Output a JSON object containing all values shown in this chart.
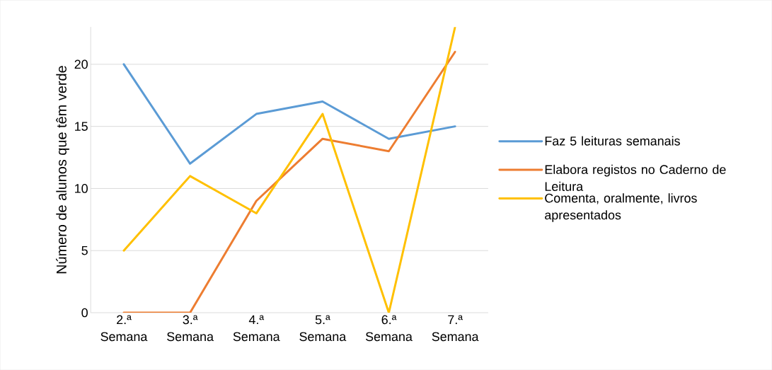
{
  "chart_data": {
    "type": "line",
    "ylabel": "Número de alunos que têm verde",
    "categories": [
      "2.ª Semana",
      "3.ª Semana",
      "4.ª Semana",
      "5.ª Semana",
      "6.ª Semana",
      "7.ª Semana"
    ],
    "series": [
      {
        "name": "Faz 5 leituras semanais",
        "color": "#5b9bd5",
        "values": [
          20,
          12,
          16,
          17,
          14,
          15
        ]
      },
      {
        "name": "Elabora registos no Caderno de Leitura",
        "color": "#ed7d31",
        "values": [
          0,
          0,
          9,
          14,
          13,
          21
        ]
      },
      {
        "name": "Comenta, oralmente, livros apresentados",
        "color": "#ffc000",
        "values": [
          5,
          11,
          8,
          16,
          0,
          23
        ]
      }
    ],
    "ylim": [
      0,
      23
    ],
    "yticks": [
      0,
      5,
      10,
      15,
      20
    ],
    "grid": "y",
    "legend": "right",
    "line_style": "solid",
    "marker": "none"
  }
}
